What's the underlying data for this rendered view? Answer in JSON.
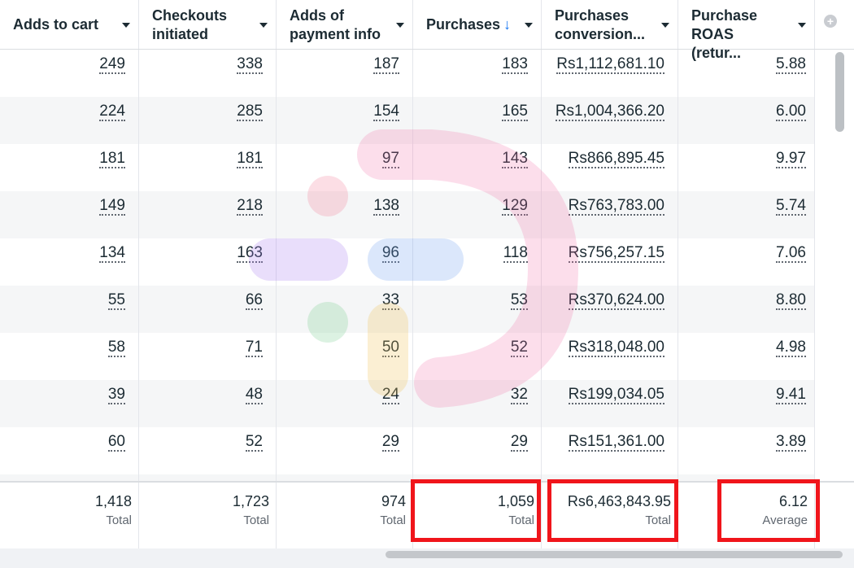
{
  "columns": [
    {
      "label_line1": "Adds to cart",
      "label_line2": ""
    },
    {
      "label_line1": "Checkouts",
      "label_line2": "initiated"
    },
    {
      "label_line1": "Adds of",
      "label_line2": "payment info"
    },
    {
      "label_line1": "Purchases",
      "label_line2": "",
      "sort_icon": "↓"
    },
    {
      "label_line1": "Purchases",
      "label_line2": "conversion..."
    },
    {
      "label_line1": "Purchase",
      "label_line2": "ROAS (retur..."
    }
  ],
  "add_column_icon": "+",
  "rows": [
    [
      "249",
      "338",
      "187",
      "183",
      "Rs1,112,681.10",
      "5.88"
    ],
    [
      "224",
      "285",
      "154",
      "165",
      "Rs1,004,366.20",
      "6.00"
    ],
    [
      "181",
      "181",
      "97",
      "143",
      "Rs866,895.45",
      "9.97"
    ],
    [
      "149",
      "218",
      "138",
      "129",
      "Rs763,783.00",
      "5.74"
    ],
    [
      "134",
      "163",
      "96",
      "118",
      "Rs756,257.15",
      "7.06"
    ],
    [
      "55",
      "66",
      "33",
      "53",
      "Rs370,624.00",
      "8.80"
    ],
    [
      "58",
      "71",
      "50",
      "52",
      "Rs318,048.00",
      "4.98"
    ],
    [
      "39",
      "48",
      "24",
      "32",
      "Rs199,034.05",
      "9.41"
    ],
    [
      "60",
      "52",
      "29",
      "29",
      "Rs151,361.00",
      "3.89"
    ]
  ],
  "totals": [
    {
      "value": "1,418",
      "label": "Total"
    },
    {
      "value": "1,723",
      "label": "Total"
    },
    {
      "value": "974",
      "label": "Total"
    },
    {
      "value": "1,059",
      "label": "Total"
    },
    {
      "value": "Rs6,463,843.95",
      "label": "Total"
    },
    {
      "value": "6.12",
      "label": "Average"
    }
  ],
  "colors": {
    "highlight": "#f0151b",
    "sort_arrow": "#1877f2",
    "row_alt": "#f5f6f7"
  }
}
